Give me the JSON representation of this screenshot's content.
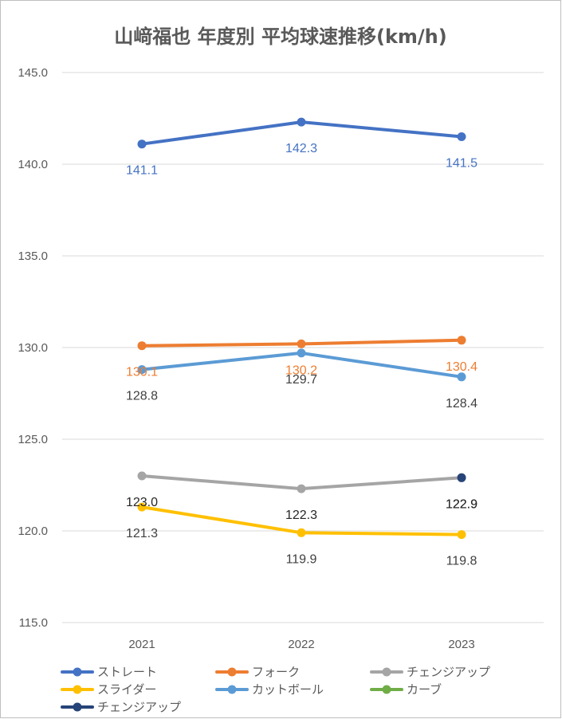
{
  "chart_data": {
    "type": "line",
    "title": "山﨑福也 年度別 平均球速推移(km/h)",
    "categories": [
      "2021",
      "2022",
      "2023"
    ],
    "ylim": [
      115,
      145
    ],
    "yticks": [
      "115.0",
      "120.0",
      "125.0",
      "130.0",
      "135.0",
      "140.0",
      "145.0"
    ],
    "grid": true,
    "legend_position": "bottom",
    "series": [
      {
        "name": "ストレート",
        "color": "#4472c4",
        "values": [
          141.1,
          142.3,
          141.5
        ],
        "labels": [
          "141.1",
          "142.3",
          "141.5"
        ],
        "label_pos": "below"
      },
      {
        "name": "フォーク",
        "color": "#ed7d31",
        "values": [
          130.1,
          130.2,
          130.4
        ],
        "labels": [
          "130.1",
          "130.2",
          "130.4"
        ],
        "label_pos": "below"
      },
      {
        "name": "チェンジアップ",
        "color": "#a5a5a5",
        "values": [
          123.0,
          122.3,
          122.9
        ],
        "labels": [
          "123.0",
          "122.3",
          "122.9"
        ],
        "label_pos": "below",
        "label_color": "#262626"
      },
      {
        "name": "スライダー",
        "color": "#ffc000",
        "values": [
          121.3,
          119.9,
          119.8
        ],
        "labels": [
          "121.3",
          "119.9",
          "119.8"
        ],
        "label_pos": "below",
        "label_color": "#404040"
      },
      {
        "name": "カットボール",
        "color": "#5b9bd5",
        "values": [
          128.8,
          129.7,
          128.4
        ],
        "labels": [
          "128.8",
          "129.7",
          "128.4"
        ],
        "label_pos": "below",
        "label_color": "#404040"
      },
      {
        "name": "カーブ",
        "color": "#70ad47",
        "values": [
          null,
          null,
          null
        ],
        "labels": []
      },
      {
        "name": "チェンジアップ",
        "color": "#264478",
        "values": [
          null,
          null,
          122.9
        ],
        "labels": [
          "",
          "",
          "122.9"
        ],
        "label_pos": "below",
        "label_color": "#262626"
      }
    ]
  }
}
